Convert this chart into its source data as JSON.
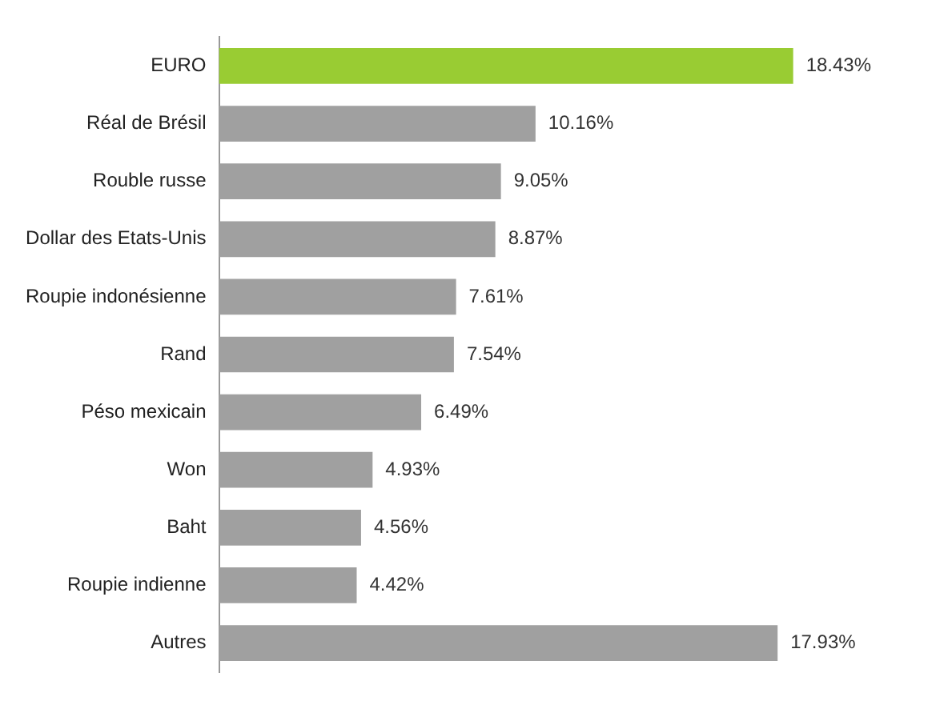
{
  "chart_data": {
    "type": "bar",
    "orientation": "horizontal",
    "categories": [
      "EURO",
      "Réal de Brésil",
      "Rouble russe",
      "Dollar des Etats-Unis",
      "Roupie indonésienne",
      "Rand",
      "Péso mexicain",
      "Won",
      "Baht",
      "Roupie indienne",
      "Autres"
    ],
    "values": [
      18.43,
      10.16,
      9.05,
      8.87,
      7.61,
      7.54,
      6.49,
      4.93,
      4.56,
      4.42,
      17.93
    ],
    "colors": [
      "#99cc33",
      "#a0a0a0",
      "#a0a0a0",
      "#a0a0a0",
      "#a0a0a0",
      "#a0a0a0",
      "#a0a0a0",
      "#a0a0a0",
      "#a0a0a0",
      "#a0a0a0",
      "#a0a0a0"
    ],
    "value_labels": [
      "18.43%",
      "10.16%",
      "9.05%",
      "8.87%",
      "7.61%",
      "7.54%",
      "6.49%",
      "4.93%",
      "4.56%",
      "4.42%",
      "17.93%"
    ],
    "grid": false,
    "legend": false,
    "tick_labels": "y"
  }
}
